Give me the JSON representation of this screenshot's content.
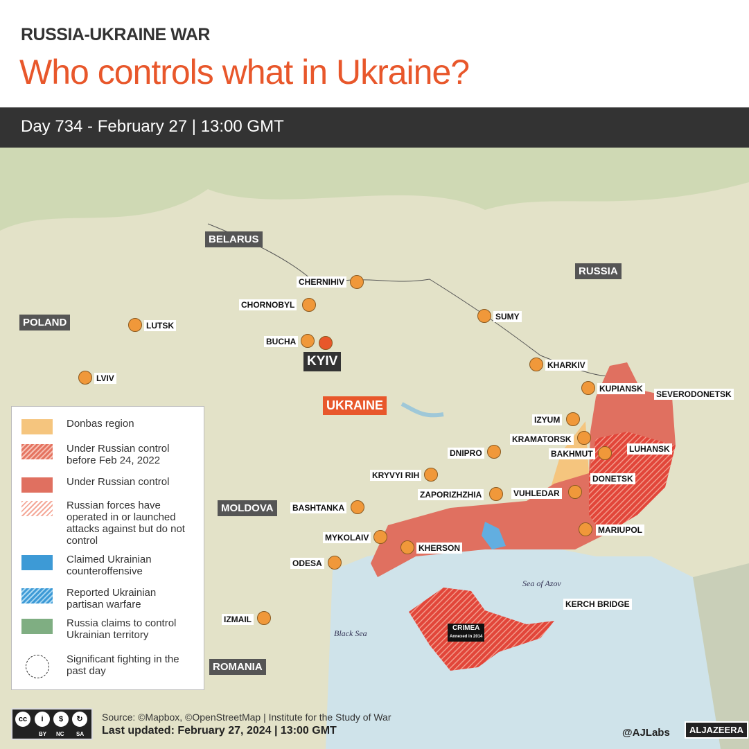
{
  "header": {
    "kicker": "RUSSIA-UKRAINE WAR",
    "title": "Who controls what in Ukraine?",
    "dateline": "Day 734 - February 27  |  13:00 GMT"
  },
  "countries": [
    "BELARUS",
    "RUSSIA",
    "POLAND",
    "MOLDOVA",
    "ROMANIA"
  ],
  "ukraine_label": "UKRAINE",
  "capital": "KYIV",
  "cities": [
    "CHERNIHIV",
    "CHORNOBYL",
    "SUMY",
    "LUTSK",
    "BUCHA",
    "KHARKIV",
    "LVIV",
    "KUPIANSK",
    "SEVERODONETSK",
    "IZYUM",
    "KRAMATORSK",
    "DNIPRO",
    "BAKHMUT",
    "LUHANSK",
    "KRYVYI RIH",
    "DONETSK",
    "ZAPORIZHZHIA",
    "VUHLEDAR",
    "BASHTANKA",
    "MARIUPOL",
    "MYKOLAIV",
    "KHERSON",
    "ODESA",
    "IZMAIL",
    "KERCH BRIDGE"
  ],
  "crimea": {
    "name": "CRIMEA",
    "note": "Annexed in 2014"
  },
  "seas": [
    "Sea of Azov",
    "Black Sea"
  ],
  "legend": [
    {
      "label": "Donbas region",
      "style": "solid",
      "color": "#f5c57e"
    },
    {
      "label": "Under Russian control before Feb 24, 2022",
      "style": "hatch",
      "color": "#e57461"
    },
    {
      "label": "Under Russian control",
      "style": "solid",
      "color": "#e07060"
    },
    {
      "label": "Russian forces have operated in or launched attacks against but do not control",
      "style": "hatch-light",
      "color": "#f4a898"
    },
    {
      "label": "Claimed Ukrainian counteroffensive",
      "style": "solid",
      "color": "#3d9ad6"
    },
    {
      "label": "Reported Ukrainian partisan warfare",
      "style": "hatch-blue",
      "color": "#3d9ad6"
    },
    {
      "label": "Russia claims to control Ukrainian territory",
      "style": "solid",
      "color": "#7fae82"
    },
    {
      "label": "Significant fighting in the past day",
      "style": "dashed-circle",
      "color": "#222"
    }
  ],
  "footer": {
    "source": "Source: ©Mapbox, ©OpenStreetMap  |  Institute for the Study of War",
    "updated": "Last updated: February 27, 2024  |  13:00 GMT",
    "handle": "@AJLabs",
    "brand": "ALJAZEERA",
    "license": [
      "BY",
      "NC",
      "SA"
    ],
    "cc": "cc"
  }
}
